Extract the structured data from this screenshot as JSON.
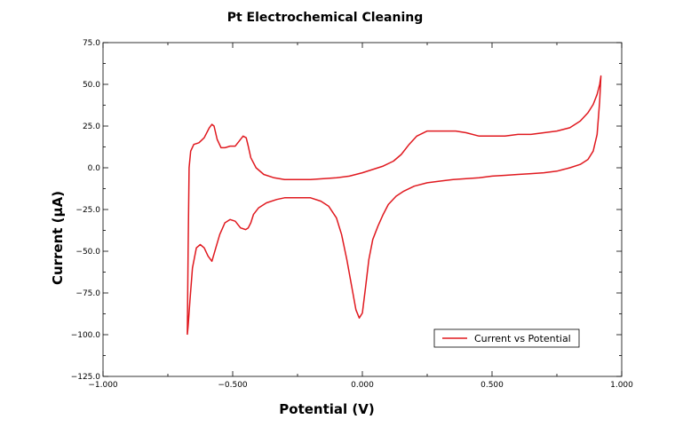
{
  "chart_data": {
    "type": "line",
    "title": "Pt Electrochemical Cleaning",
    "xlabel": "Potential (V)",
    "ylabel": "Current (µA)",
    "xlim": [
      -1.0,
      1.0
    ],
    "ylim": [
      -125,
      75
    ],
    "xticks": [
      -1.0,
      -0.5,
      0.0,
      0.5,
      1.0
    ],
    "xtick_labels": [
      "−1.000",
      "−0.500",
      "0.000",
      "0.500",
      "1.000"
    ],
    "yticks": [
      75,
      50,
      25,
      0,
      -25,
      -50,
      -75,
      -100,
      -125
    ],
    "ytick_labels": [
      "75.0",
      "50.0",
      "25.0",
      "0.0",
      "−25.0",
      "−50.0",
      "−75.0",
      "−100.0",
      "−125.0"
    ],
    "grid": false,
    "legend_position": "bottom-right",
    "series": [
      {
        "name": "Current vs Potential",
        "color": "#e0191f",
        "x": [
          -0.675,
          -0.672,
          -0.668,
          -0.662,
          -0.65,
          -0.63,
          -0.61,
          -0.59,
          -0.58,
          -0.572,
          -0.56,
          -0.545,
          -0.53,
          -0.51,
          -0.49,
          -0.475,
          -0.46,
          -0.448,
          -0.44,
          -0.43,
          -0.41,
          -0.38,
          -0.34,
          -0.3,
          -0.25,
          -0.2,
          -0.15,
          -0.1,
          -0.05,
          0.0,
          0.04,
          0.08,
          0.12,
          0.15,
          0.18,
          0.21,
          0.25,
          0.28,
          0.32,
          0.36,
          0.4,
          0.45,
          0.5,
          0.55,
          0.6,
          0.65,
          0.7,
          0.75,
          0.8,
          0.84,
          0.87,
          0.89,
          0.905,
          0.915,
          0.92,
          0.92,
          0.915,
          0.905,
          0.89,
          0.87,
          0.84,
          0.8,
          0.75,
          0.7,
          0.65,
          0.6,
          0.55,
          0.5,
          0.45,
          0.4,
          0.35,
          0.3,
          0.25,
          0.2,
          0.16,
          0.13,
          0.1,
          0.08,
          0.06,
          0.04,
          0.025,
          0.012,
          0.0,
          -0.012,
          -0.025,
          -0.04,
          -0.06,
          -0.08,
          -0.1,
          -0.13,
          -0.16,
          -0.2,
          -0.25,
          -0.3,
          -0.33,
          -0.37,
          -0.4,
          -0.42,
          -0.43,
          -0.44,
          -0.45,
          -0.47,
          -0.49,
          -0.51,
          -0.53,
          -0.55,
          -0.565,
          -0.58,
          -0.595,
          -0.61,
          -0.625,
          -0.64,
          -0.655,
          -0.665,
          -0.672,
          -0.675
        ],
        "y": [
          -100,
          -50,
          0,
          10,
          14,
          15,
          18,
          24,
          26,
          25,
          17,
          12,
          12,
          13,
          13,
          16,
          19,
          18,
          13,
          6,
          0,
          -4,
          -6,
          -7,
          -7,
          -7,
          -6.5,
          -6,
          -5,
          -3,
          -1,
          1,
          4,
          8,
          14,
          19,
          22,
          22,
          22,
          22,
          21,
          19,
          19,
          19,
          20,
          20,
          21,
          22,
          24,
          28,
          33,
          38,
          44,
          50,
          55,
          55,
          40,
          20,
          10,
          5,
          2,
          0,
          -2,
          -3,
          -3.5,
          -4,
          -4.5,
          -5,
          -6,
          -6.5,
          -7,
          -8,
          -9,
          -11,
          -14,
          -17,
          -22,
          -28,
          -35,
          -43,
          -55,
          -72,
          -87,
          -90,
          -85,
          -72,
          -55,
          -40,
          -30,
          -23,
          -20,
          -18,
          -18,
          -18,
          -19,
          -21,
          -24,
          -28,
          -33,
          -36,
          -37,
          -36,
          -32,
          -31,
          -33,
          -40,
          -48,
          -56,
          -53,
          -48,
          -46,
          -48,
          -60,
          -80,
          -95,
          -100
        ]
      }
    ]
  }
}
